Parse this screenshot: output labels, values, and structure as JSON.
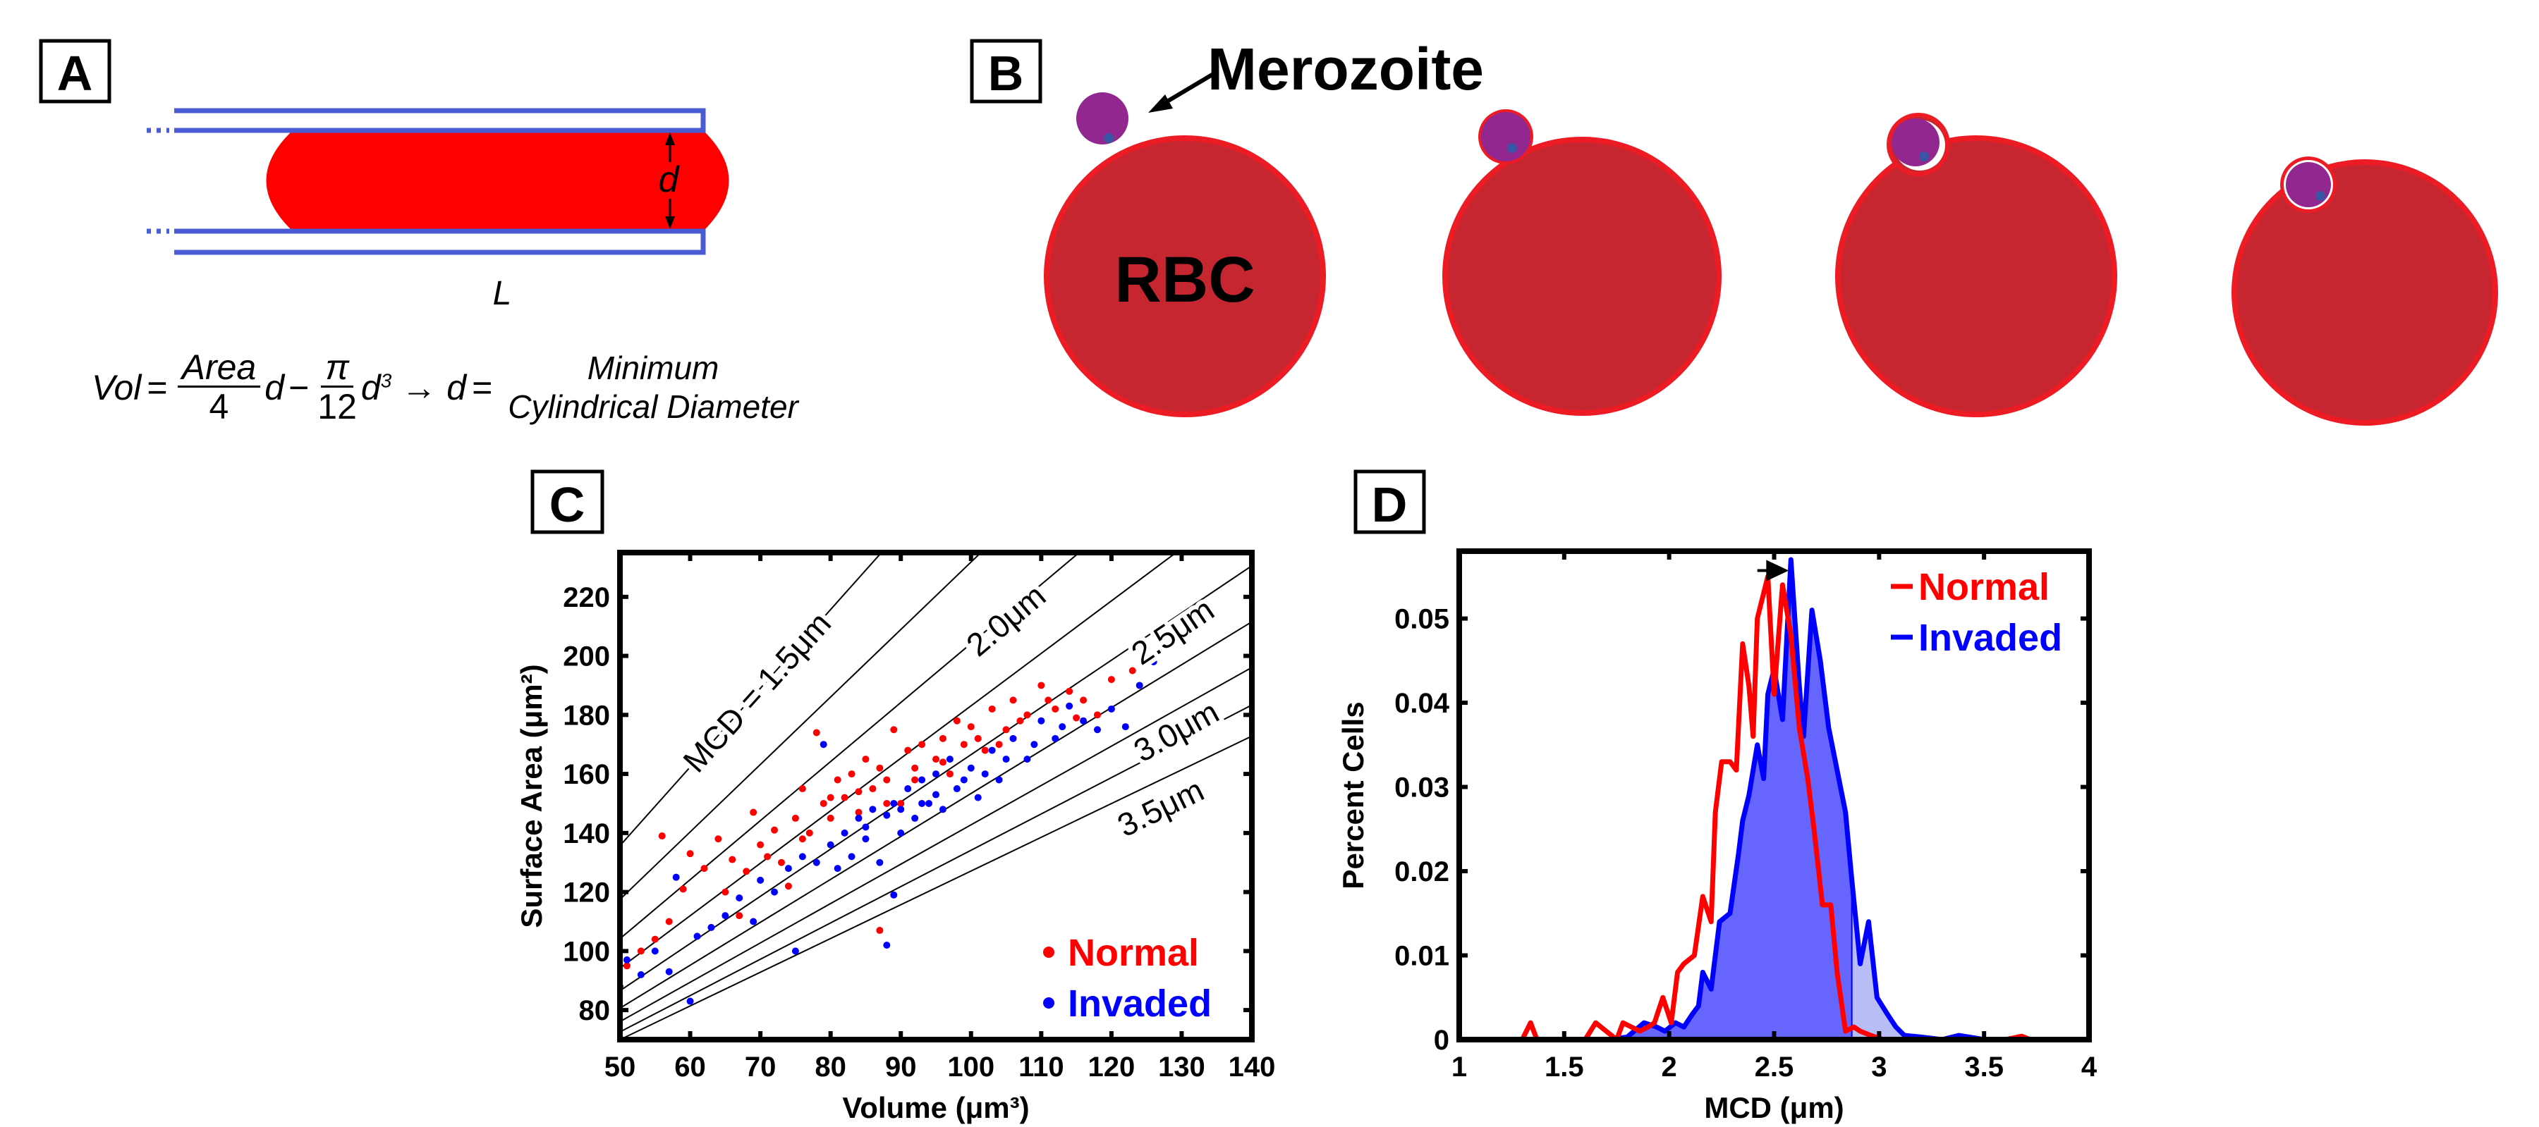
{
  "panel_labels": {
    "a": "A",
    "b": "B",
    "c": "C",
    "d": "D"
  },
  "panel_a": {
    "length_label": "L",
    "diameter_label": "d",
    "equation": {
      "lhs": "Vol",
      "eq": "=",
      "frac1_num": "Area",
      "frac1_den": "4",
      "term1": "d",
      "minus": "−",
      "frac2_num": "π",
      "frac2_den": "12",
      "term2": "d",
      "exp": "3",
      "arrow": "→",
      "result_var": "d",
      "eq2": "=",
      "result_line1": "Minimum",
      "result_line2": "Cylindrical Diameter"
    },
    "colors": {
      "tube": "#4a5bd4",
      "cell": "#ff0000"
    }
  },
  "panel_b": {
    "merozoite_label": "Merozoite",
    "rbc_label": "RBC",
    "colors": {
      "rbc_fill": "#c5262f",
      "rbc_edge": "#ed1c24",
      "merozoite": "#92278f",
      "apical": "#3a55a4"
    }
  },
  "chart_data": [
    {
      "type": "scatter",
      "panel": "C",
      "title": "",
      "xlabel": "Volume (μm³)",
      "ylabel": "Surface Area (μm²)",
      "xlim": [
        50,
        140
      ],
      "ylim": [
        70,
        235
      ],
      "xticks": [
        50,
        60,
        70,
        80,
        90,
        100,
        110,
        120,
        130,
        140
      ],
      "yticks": [
        80,
        100,
        120,
        140,
        160,
        180,
        200,
        220
      ],
      "grid": false,
      "legend": "bottom-right",
      "mcd_contours_um": [
        1.5,
        1.75,
        2.0,
        2.25,
        2.5,
        2.75,
        3.0,
        3.25,
        3.5
      ],
      "contour_labels": [
        "MCD = 1.5μm",
        "2.0μm",
        "2.5μm",
        "3.0μm",
        "3.5μm"
      ],
      "series": [
        {
          "name": "Normal",
          "color": "#ff0000",
          "points": [
            [
              51,
              95
            ],
            [
              53,
              100
            ],
            [
              55,
              104
            ],
            [
              56,
              139
            ],
            [
              57,
              110
            ],
            [
              59,
              121
            ],
            [
              60,
              133
            ],
            [
              62,
              128
            ],
            [
              64,
              138
            ],
            [
              65,
              120
            ],
            [
              66,
              131
            ],
            [
              68,
              127
            ],
            [
              69,
              147
            ],
            [
              70,
              136
            ],
            [
              72,
              141
            ],
            [
              73,
              130
            ],
            [
              75,
              145
            ],
            [
              76,
              155
            ],
            [
              77,
              140
            ],
            [
              78,
              174
            ],
            [
              79,
              150
            ],
            [
              80,
              145
            ],
            [
              81,
              158
            ],
            [
              82,
              152
            ],
            [
              83,
              160
            ],
            [
              84,
              147
            ],
            [
              85,
              165
            ],
            [
              86,
              155
            ],
            [
              87,
              162
            ],
            [
              88,
              158
            ],
            [
              89,
              175
            ],
            [
              90,
              150
            ],
            [
              91,
              168
            ],
            [
              92,
              162
            ],
            [
              93,
              170
            ],
            [
              95,
              165
            ],
            [
              96,
              172
            ],
            [
              97,
              160
            ],
            [
              98,
              178
            ],
            [
              99,
              170
            ],
            [
              100,
              176
            ],
            [
              102,
              168
            ],
            [
              103,
              182
            ],
            [
              105,
              175
            ],
            [
              106,
              185
            ],
            [
              108,
              180
            ],
            [
              110,
              190
            ],
            [
              112,
              182
            ],
            [
              114,
              188
            ],
            [
              116,
              185
            ],
            [
              118,
              180
            ],
            [
              120,
              192
            ],
            [
              123,
              195
            ],
            [
              67,
              112
            ],
            [
              74,
              122
            ],
            [
              87,
              107
            ],
            [
              71,
              132
            ],
            [
              76,
              138
            ],
            [
              80,
              152
            ],
            [
              84,
              154
            ],
            [
              88,
              150
            ],
            [
              92,
              158
            ],
            [
              96,
              164
            ],
            [
              101,
              172
            ],
            [
              104,
              170
            ],
            [
              107,
              178
            ],
            [
              111,
              185
            ],
            [
              115,
              179
            ]
          ]
        },
        {
          "name": "Invaded",
          "color": "#0000ff",
          "points": [
            [
              50,
              88
            ],
            [
              51,
              97
            ],
            [
              53,
              92
            ],
            [
              55,
              100
            ],
            [
              57,
              93
            ],
            [
              58,
              125
            ],
            [
              60,
              83
            ],
            [
              61,
              105
            ],
            [
              63,
              108
            ],
            [
              65,
              112
            ],
            [
              67,
              118
            ],
            [
              69,
              110
            ],
            [
              70,
              124
            ],
            [
              72,
              120
            ],
            [
              74,
              128
            ],
            [
              75,
              100
            ],
            [
              76,
              132
            ],
            [
              78,
              130
            ],
            [
              79,
              170
            ],
            [
              80,
              136
            ],
            [
              82,
              140
            ],
            [
              83,
              132
            ],
            [
              84,
              145
            ],
            [
              85,
              138
            ],
            [
              86,
              148
            ],
            [
              87,
              130
            ],
            [
              88,
              102
            ],
            [
              89,
              150
            ],
            [
              90,
              140
            ],
            [
              91,
              155
            ],
            [
              92,
              145
            ],
            [
              93,
              158
            ],
            [
              94,
              150
            ],
            [
              95,
              160
            ],
            [
              96,
              148
            ],
            [
              97,
              165
            ],
            [
              98,
              155
            ],
            [
              100,
              162
            ],
            [
              101,
              152
            ],
            [
              103,
              168
            ],
            [
              104,
              158
            ],
            [
              106,
              172
            ],
            [
              108,
              165
            ],
            [
              110,
              178
            ],
            [
              112,
              172
            ],
            [
              114,
              183
            ],
            [
              116,
              178
            ],
            [
              118,
              175
            ],
            [
              120,
              182
            ],
            [
              122,
              176
            ],
            [
              124,
              190
            ],
            [
              126,
              198
            ],
            [
              89,
              119
            ],
            [
              81,
              128
            ],
            [
              85,
              142
            ],
            [
              88,
              146
            ],
            [
              90,
              148
            ],
            [
              93,
              150
            ],
            [
              95,
              153
            ],
            [
              99,
              158
            ],
            [
              102,
              160
            ],
            [
              105,
              165
            ],
            [
              109,
              170
            ],
            [
              113,
              176
            ]
          ]
        }
      ]
    },
    {
      "type": "line",
      "panel": "D",
      "title": "",
      "xlabel": "MCD (μm)",
      "ylabel": "Percent Cells",
      "xlim": [
        1,
        4
      ],
      "ylim": [
        0,
        0.058
      ],
      "xticks": [
        1,
        1.5,
        2,
        2.5,
        3,
        3.5,
        4
      ],
      "xtick_labels": [
        "1",
        "1.5",
        "2",
        "2.5",
        "3",
        "3.5",
        "4"
      ],
      "yticks": [
        0,
        0.01,
        0.02,
        0.03,
        0.04,
        0.05
      ],
      "ytick_labels": [
        "0",
        "0.01",
        "0.02",
        "0.03",
        "0.04",
        "0.05"
      ],
      "grid": false,
      "legend": "top-right",
      "shift_arrow": {
        "from": 2.42,
        "to": 2.57,
        "y": 0.0557
      },
      "series": [
        {
          "name": "Normal",
          "color": "#ff0000",
          "filled": false,
          "x": [
            1.3,
            1.34,
            1.37,
            1.6,
            1.65,
            1.7,
            1.75,
            1.78,
            1.82,
            1.86,
            1.9,
            1.93,
            1.97,
            2.01,
            2.04,
            2.07,
            2.12,
            2.16,
            2.2,
            2.22,
            2.25,
            2.29,
            2.32,
            2.35,
            2.38,
            2.4,
            2.42,
            2.45,
            2.47,
            2.5,
            2.54,
            2.58,
            2.62,
            2.66,
            2.69,
            2.73,
            2.77,
            2.8,
            2.84,
            2.88,
            2.91,
            2.96,
            3.02,
            3.6,
            3.68,
            3.72
          ],
          "y": [
            0,
            0.002,
            0,
            0,
            0.002,
            0.001,
            0,
            0.002,
            0.0015,
            0.001,
            0.0015,
            0.002,
            0.005,
            0.002,
            0.008,
            0.009,
            0.01,
            0.017,
            0.014,
            0.027,
            0.033,
            0.033,
            0.032,
            0.047,
            0.042,
            0.036,
            0.05,
            0.053,
            0.055,
            0.041,
            0.054,
            0.048,
            0.037,
            0.031,
            0.025,
            0.016,
            0.016,
            0.008,
            0.001,
            0.0015,
            0.001,
            0.0005,
            0,
            0,
            0.0004,
            0
          ]
        },
        {
          "name": "Invaded",
          "color": "#0000ff",
          "filled": true,
          "fill_colors": [
            "#6666ff",
            "#b8bdf5"
          ],
          "x": [
            1.7,
            1.8,
            1.88,
            1.94,
            1.98,
            2.03,
            2.07,
            2.11,
            2.14,
            2.16,
            2.2,
            2.24,
            2.29,
            2.33,
            2.35,
            2.38,
            2.42,
            2.45,
            2.47,
            2.5,
            2.54,
            2.58,
            2.62,
            2.64,
            2.68,
            2.72,
            2.76,
            2.8,
            2.84,
            2.87,
            2.91,
            2.95,
            2.99,
            3.04,
            3.08,
            3.12,
            3.2,
            3.3,
            3.38,
            3.43,
            3.5
          ],
          "y": [
            0,
            0.0003,
            0.002,
            0.0015,
            0.001,
            0.002,
            0.0015,
            0.003,
            0.004,
            0.008,
            0.006,
            0.014,
            0.015,
            0.022,
            0.026,
            0.029,
            0.035,
            0.031,
            0.041,
            0.044,
            0.038,
            0.057,
            0.042,
            0.036,
            0.051,
            0.045,
            0.037,
            0.032,
            0.027,
            0.019,
            0.009,
            0.014,
            0.005,
            0.003,
            0.0015,
            0.0005,
            0.0003,
            0,
            0.0005,
            0.0003,
            0
          ]
        }
      ]
    }
  ]
}
